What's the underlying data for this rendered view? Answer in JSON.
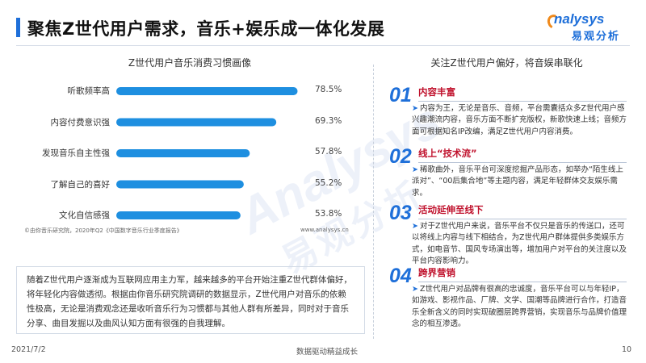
{
  "header": {
    "title": "聚焦Z世代用户需求，音乐+娱乐成一体化发展",
    "logo_text": "nalysys",
    "logo_sub": "易观分析"
  },
  "watermark": {
    "en": "Analysys",
    "cn": "易观分析"
  },
  "chart_data": {
    "type": "bar",
    "orientation": "horizontal",
    "title": "Z世代用户音乐消费习惯画像",
    "categories": [
      "听歌频率高",
      "内容付费意识强",
      "发现音乐自主性强",
      "了解自己的喜好",
      "文化自信感强"
    ],
    "values": [
      78.5,
      69.3,
      57.8,
      55.2,
      53.8
    ],
    "value_labels": [
      "78.5%",
      "69.3%",
      "57.8%",
      "55.2%",
      "53.8%"
    ],
    "xlim": [
      0,
      100
    ],
    "bar_color": "#1e8fe0",
    "source": "©由你音乐研究院，2020年Q2《中国数字音乐行业季度报告》",
    "site": "www.analysys.cn"
  },
  "summary_text": "随着Z世代用户逐渐成为互联网应用主力军，越来越多的平台开始注重Z世代群体偏好，将年轻化内容做透彻。根据由你音乐研究院调研的数据显示，Z世代用户对音乐的依赖性极高，无论是消费观念还是收听音乐行为习惯都与其他人群有所差异，同时对于音乐分享、曲目发掘以及曲风认知方面有很强的自我理解。",
  "right_title": "关注Z世代用户偏好，将音娱串联化",
  "sections": [
    {
      "num": "01",
      "heading": "内容丰富",
      "body": "内容为王，无论是音乐、音频，平台需囊括众多Z世代用户感兴趣潮流内容，音乐方面不断扩充版权，新歌快速上线；音频方面可根据知名IP改编，满足Z世代用户内容消费。"
    },
    {
      "num": "02",
      "heading": "线上“技术流”",
      "body": "稀歌曲外，音乐平台可深度挖掘产品形态，如举办“陌生线上派对”、“00后集合地”等主题内容，满足年轻群体交友娱乐需求。"
    },
    {
      "num": "03",
      "heading": "活动延伸至线下",
      "body": "对于Z世代用户来说，音乐平台不仅只是音乐的传送口，还可以将线上内容与线下相结合，为Z世代用户群体提供多类娱乐方式，如电音节、国风专场演出等，增加用户对平台的关注度以及平台内容影响力。"
    },
    {
      "num": "04",
      "heading": "跨界营销",
      "body": "Z世代用户对品牌有很高的忠诚度，音乐平台可以与年轻IP，如游戏、影视作品、厂牌、文学、国潮等品牌进行合作，打造音乐全新含义的同时实现破圈层跨界营销，实现音乐与品牌价值理念的相互渗透。"
    }
  ],
  "footer": {
    "date": "2021/7/2",
    "slogan": "数据驱动精益成长",
    "page": "10"
  }
}
